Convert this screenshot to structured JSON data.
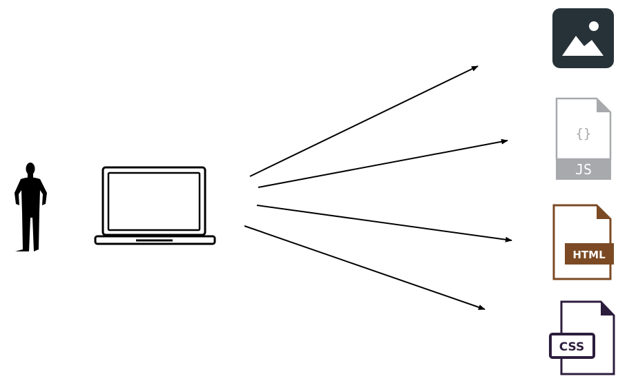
{
  "colors": {
    "image_icon": "#263238",
    "js_icon": "#a7a9ac",
    "html_icon": "#7b4a24",
    "css_icon": "#2c1d3d",
    "stroke": "#000000"
  },
  "icons": {
    "person": "person-silhouette-icon",
    "laptop": "laptop-icon",
    "image_file": "image-file-icon",
    "js_file": "js-file-icon",
    "html_file": "html-file-icon",
    "css_file": "css-file-icon"
  },
  "files": {
    "js_braces": "{}",
    "js_label": "JS",
    "html_label": "HTML",
    "css_label": "CSS"
  }
}
